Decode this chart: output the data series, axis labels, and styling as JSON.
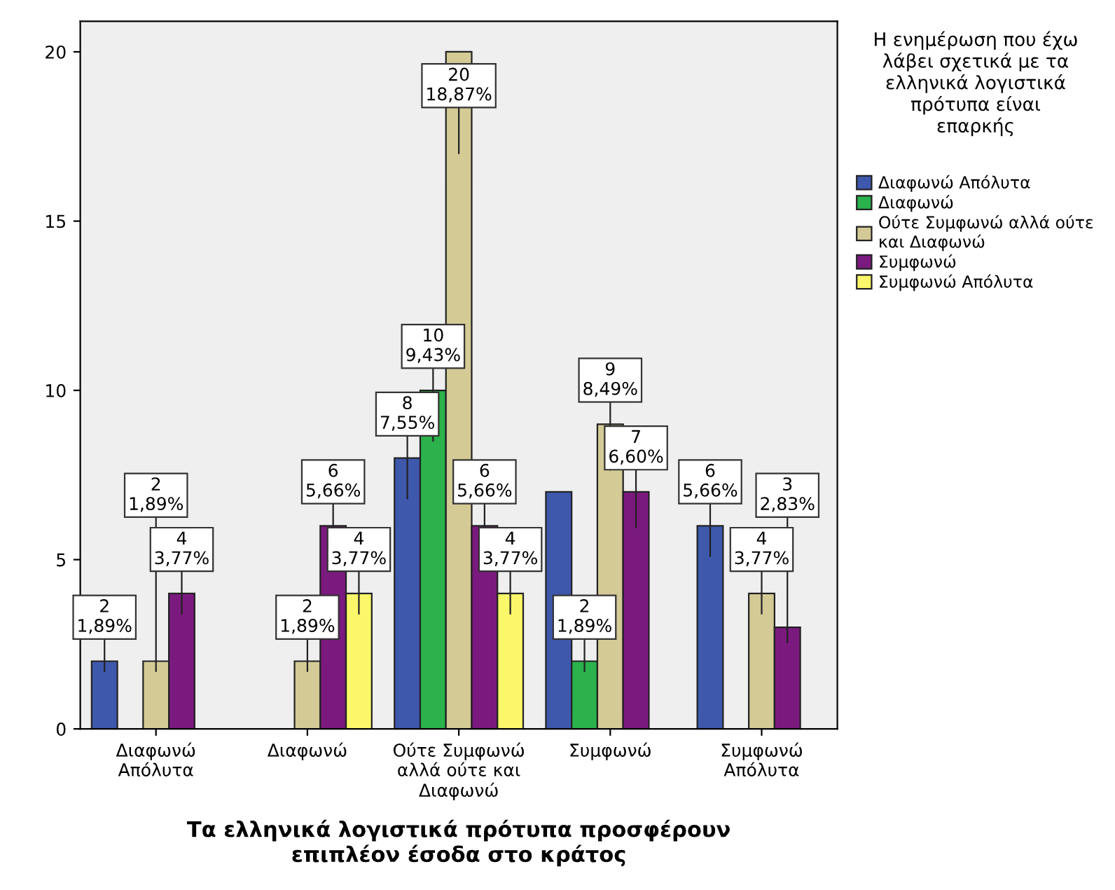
{
  "chart_data": {
    "type": "bar",
    "xlabel": "Τα ελληνικά λογιστικά πρότυπα προσφέρουν\nεπιπλέον έσοδα στο κράτος",
    "legend_title": "Η ενημέρωση που έχω\nλάβει σχετικά με τα\nελληνικά λογιστικά\nπρότυπα είναι\nεπαρκής",
    "categories": [
      "Διαφωνώ\nΑπόλυτα",
      "Διαφωνώ",
      "Ούτε Συμφωνώ\nαλλά ούτε και\nΔιαφωνώ",
      "Συμφωνώ",
      "Συμφωνώ\nΑπόλυτα"
    ],
    "series": [
      {
        "name": "Διαφωνώ Απόλυτα",
        "color": "#3e58ac",
        "values": [
          2,
          null,
          8,
          7,
          6
        ],
        "value_labels": [
          "2\n1,89%",
          null,
          "8\n7,55%",
          null,
          "6\n5,66%"
        ]
      },
      {
        "name": "Διαφωνώ",
        "color": "#2bb24c",
        "values": [
          null,
          null,
          10,
          2,
          null
        ],
        "value_labels": [
          null,
          null,
          "10\n9,43%",
          "2\n1,89%",
          null
        ]
      },
      {
        "name": "Ούτε Συμφωνώ αλλά ούτε\nκαι Διαφωνώ",
        "color": "#d3ca96",
        "values": [
          2,
          2,
          20,
          9,
          4
        ],
        "value_labels": [
          "2\n1,89%",
          "2\n1,89%",
          "20\n18,87%",
          "9\n8,49%",
          "4\n3,77%"
        ]
      },
      {
        "name": "Συμφωνώ",
        "color": "#7b1a7e",
        "values": [
          4,
          6,
          6,
          7,
          3
        ],
        "value_labels": [
          "4\n3,77%",
          "6\n5,66%",
          "6\n5,66%",
          "7\n6,60%",
          "3\n2,83%"
        ]
      },
      {
        "name": "Συμφωνώ Απόλυτα",
        "color": "#fbf76a",
        "values": [
          null,
          4,
          4,
          null,
          null
        ],
        "value_labels": [
          null,
          "4\n3,77%",
          "4\n3,77%",
          null,
          null
        ]
      }
    ],
    "ylim": [
      0,
      20.9
    ],
    "yticks": [
      0,
      5,
      10,
      15,
      20
    ],
    "grid": false,
    "legend": "right"
  }
}
